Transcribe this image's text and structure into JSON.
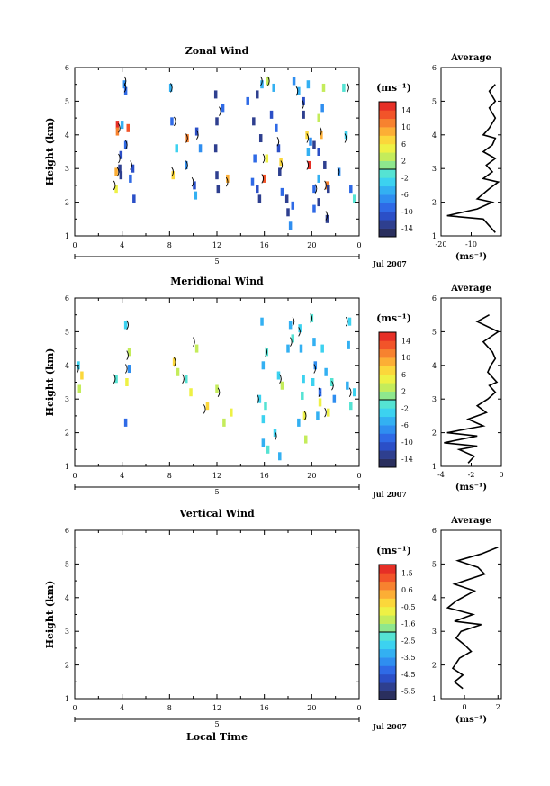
{
  "figure": {
    "x_axis_title": "Local Time",
    "date_label": "Jul 2007",
    "day_label": "5",
    "unit_label": "(ms⁻¹)"
  },
  "chart_data": [
    {
      "id": "zonal",
      "type": "heatmap",
      "title": "Zonal Wind",
      "ylabel": "Height (km)",
      "xticks": [
        "0",
        "4",
        "8",
        "12",
        "16",
        "20",
        "0"
      ],
      "yticks": [
        "1",
        "2",
        "3",
        "4",
        "5",
        "6"
      ],
      "colorbar": {
        "ticks": [
          "14",
          "10",
          "6",
          "2",
          "-2",
          "-6",
          "-10",
          "-14"
        ],
        "range": [
          -16,
          16
        ]
      },
      "cells": [
        [
          4.2,
          5.5,
          -8
        ],
        [
          4.3,
          5.3,
          -10
        ],
        [
          3.6,
          4.3,
          14
        ],
        [
          3.6,
          4.1,
          10
        ],
        [
          4.0,
          4.3,
          -6
        ],
        [
          4.5,
          4.2,
          12
        ],
        [
          3.9,
          3.4,
          -12
        ],
        [
          3.8,
          3.0,
          -14
        ],
        [
          3.9,
          2.8,
          -14
        ],
        [
          3.5,
          2.9,
          8
        ],
        [
          3.5,
          2.4,
          4
        ],
        [
          4.9,
          3.0,
          -12
        ],
        [
          4.7,
          2.7,
          -10
        ],
        [
          5.0,
          2.1,
          -12
        ],
        [
          4.3,
          3.7,
          -10
        ],
        [
          8.1,
          5.4,
          -6
        ],
        [
          8.2,
          4.4,
          -10
        ],
        [
          8.6,
          3.6,
          -4
        ],
        [
          8.3,
          2.8,
          6
        ],
        [
          9.5,
          3.9,
          10
        ],
        [
          9.4,
          3.1,
          -8
        ],
        [
          10.3,
          4.1,
          -12
        ],
        [
          10.6,
          3.6,
          -8
        ],
        [
          10.1,
          2.5,
          -12
        ],
        [
          10.2,
          2.2,
          -6
        ],
        [
          11.9,
          5.2,
          -14
        ],
        [
          12.0,
          4.4,
          -14
        ],
        [
          11.9,
          3.6,
          -14
        ],
        [
          12.0,
          2.8,
          -14
        ],
        [
          12.1,
          2.4,
          -14
        ],
        [
          12.5,
          4.8,
          -10
        ],
        [
          12.9,
          2.7,
          8
        ],
        [
          14.6,
          5.0,
          -10
        ],
        [
          15.4,
          5.2,
          -14
        ],
        [
          15.1,
          4.4,
          -14
        ],
        [
          15.7,
          3.9,
          -14
        ],
        [
          15.2,
          3.3,
          -10
        ],
        [
          15.0,
          2.6,
          -10
        ],
        [
          15.4,
          2.4,
          -12
        ],
        [
          15.6,
          2.1,
          -14
        ],
        [
          16.2,
          3.3,
          4
        ],
        [
          16.0,
          2.7,
          12
        ],
        [
          15.8,
          5.5,
          -6
        ],
        [
          16.3,
          5.6,
          2
        ],
        [
          16.8,
          5.4,
          -6
        ],
        [
          16.6,
          4.6,
          -12
        ],
        [
          17.0,
          4.2,
          -10
        ],
        [
          17.2,
          3.6,
          -12
        ],
        [
          17.4,
          3.2,
          6
        ],
        [
          17.3,
          2.9,
          -14
        ],
        [
          17.5,
          2.3,
          -10
        ],
        [
          17.9,
          2.1,
          -14
        ],
        [
          18.4,
          1.9,
          -10
        ],
        [
          18.2,
          1.3,
          -8
        ],
        [
          18.0,
          1.7,
          -14
        ],
        [
          18.9,
          5.3,
          -6
        ],
        [
          18.5,
          5.6,
          -8
        ],
        [
          19.3,
          5.0,
          -12
        ],
        [
          19.3,
          4.6,
          -14
        ],
        [
          19.7,
          5.5,
          -6
        ],
        [
          19.6,
          4.0,
          6
        ],
        [
          19.9,
          3.8,
          -8
        ],
        [
          19.7,
          3.5,
          -6
        ],
        [
          19.8,
          3.1,
          14
        ],
        [
          20.2,
          3.7,
          -14
        ],
        [
          20.2,
          2.4,
          -10
        ],
        [
          20.6,
          2.0,
          -14
        ],
        [
          20.2,
          1.8,
          -10
        ],
        [
          21.0,
          5.4,
          2
        ],
        [
          20.9,
          4.8,
          -8
        ],
        [
          20.6,
          4.5,
          2
        ],
        [
          20.8,
          4.0,
          8
        ],
        [
          20.6,
          3.5,
          -12
        ],
        [
          21.1,
          3.1,
          -14
        ],
        [
          20.6,
          2.7,
          -6
        ],
        [
          21.3,
          2.5,
          10
        ],
        [
          21.4,
          2.4,
          -14
        ],
        [
          21.3,
          1.5,
          -14
        ],
        [
          22.9,
          4.0,
          -4
        ],
        [
          22.3,
          2.9,
          -8
        ],
        [
          23.6,
          2.1,
          -2
        ],
        [
          22.7,
          5.4,
          -2
        ],
        [
          23.3,
          2.4,
          -10
        ]
      ],
      "contours": [
        [
          4.3,
          5.6
        ],
        [
          4.3,
          5.4
        ],
        [
          3.8,
          4.2
        ],
        [
          3.8,
          3.3
        ],
        [
          3.7,
          2.9
        ],
        [
          4.8,
          3.1
        ],
        [
          4.4,
          3.7
        ],
        [
          3.4,
          2.5
        ],
        [
          8.2,
          5.4
        ],
        [
          8.5,
          4.4
        ],
        [
          8.3,
          2.9
        ],
        [
          9.5,
          3.9
        ],
        [
          9.5,
          3.1
        ],
        [
          10.4,
          4.0
        ],
        [
          10.0,
          2.6
        ],
        [
          12.3,
          4.7
        ],
        [
          12.9,
          2.6
        ],
        [
          15.8,
          5.6
        ],
        [
          16.0,
          3.3
        ],
        [
          15.9,
          2.7
        ],
        [
          16.4,
          5.6
        ],
        [
          17.5,
          3.1
        ],
        [
          17.2,
          3.8
        ],
        [
          18.8,
          5.3
        ],
        [
          19.3,
          4.9
        ],
        [
          19.7,
          3.9
        ],
        [
          19.7,
          3.1
        ],
        [
          20.4,
          2.4
        ],
        [
          20.8,
          4.1
        ],
        [
          21.2,
          2.5
        ],
        [
          21.3,
          1.6
        ],
        [
          23.1,
          5.4
        ],
        [
          22.9,
          3.9
        ],
        [
          22.3,
          2.9
        ]
      ],
      "profile": {
        "title": "Average",
        "xticks": [
          "-20",
          "-10"
        ],
        "xlim": [
          -20,
          0
        ],
        "points": [
          [
            -2,
            5.5
          ],
          [
            -4,
            5.3
          ],
          [
            -2,
            5.0
          ],
          [
            -4,
            4.8
          ],
          [
            -2,
            4.5
          ],
          [
            -4,
            4.2
          ],
          [
            -6,
            4.0
          ],
          [
            -2,
            3.9
          ],
          [
            -3,
            3.7
          ],
          [
            -6,
            3.5
          ],
          [
            -2,
            3.3
          ],
          [
            -5,
            3.1
          ],
          [
            -3,
            2.9
          ],
          [
            -6,
            2.7
          ],
          [
            -1,
            2.6
          ],
          [
            -4,
            2.4
          ],
          [
            -8,
            2.1
          ],
          [
            -3,
            2.0
          ],
          [
            -8,
            1.8
          ],
          [
            -18,
            1.6
          ],
          [
            -6,
            1.5
          ],
          [
            -4,
            1.3
          ],
          [
            -2,
            1.1
          ]
        ]
      }
    },
    {
      "id": "meridional",
      "type": "heatmap",
      "title": "Meridional Wind",
      "ylabel": "Height (km)",
      "xticks": [
        "0",
        "4",
        "8",
        "12",
        "16",
        "20",
        "0"
      ],
      "yticks": [
        "1",
        "2",
        "3",
        "4",
        "5",
        "6"
      ],
      "colorbar": {
        "ticks": [
          "14",
          "10",
          "6",
          "2",
          "-2",
          "-6",
          "-10",
          "-14"
        ],
        "range": [
          -16,
          16
        ]
      },
      "cells": [
        [
          0.3,
          4.0,
          -4
        ],
        [
          0.6,
          3.7,
          6
        ],
        [
          0.4,
          3.3,
          2
        ],
        [
          3.5,
          3.6,
          -2
        ],
        [
          4.3,
          5.2,
          -4
        ],
        [
          4.6,
          4.4,
          2
        ],
        [
          4.6,
          3.9,
          -8
        ],
        [
          4.4,
          3.5,
          4
        ],
        [
          4.3,
          2.3,
          -10
        ],
        [
          8.4,
          4.1,
          6
        ],
        [
          8.7,
          3.8,
          2
        ],
        [
          9.8,
          3.2,
          4
        ],
        [
          9.4,
          3.6,
          -2
        ],
        [
          10.3,
          4.5,
          2
        ],
        [
          11.2,
          2.8,
          6
        ],
        [
          12.0,
          3.3,
          2
        ],
        [
          12.6,
          2.3,
          2
        ],
        [
          13.2,
          2.6,
          4
        ],
        [
          15.8,
          5.3,
          -6
        ],
        [
          16.2,
          4.4,
          -2
        ],
        [
          15.9,
          4.0,
          -6
        ],
        [
          15.6,
          3.0,
          -4
        ],
        [
          16.1,
          2.8,
          -2
        ],
        [
          15.9,
          2.4,
          -4
        ],
        [
          15.9,
          1.7,
          -6
        ],
        [
          16.3,
          1.5,
          -2
        ],
        [
          16.9,
          2.0,
          -4
        ],
        [
          17.3,
          1.3,
          -6
        ],
        [
          17.2,
          3.7,
          -4
        ],
        [
          17.5,
          3.4,
          2
        ],
        [
          18.2,
          5.2,
          -6
        ],
        [
          18.4,
          4.8,
          -2
        ],
        [
          18.0,
          4.5,
          -6
        ],
        [
          19.0,
          5.1,
          -4
        ],
        [
          19.1,
          4.5,
          -6
        ],
        [
          19.3,
          3.6,
          -4
        ],
        [
          19.2,
          3.1,
          -2
        ],
        [
          18.9,
          2.3,
          -6
        ],
        [
          19.4,
          2.5,
          4
        ],
        [
          19.5,
          1.8,
          2
        ],
        [
          20.0,
          5.4,
          -2
        ],
        [
          20.2,
          4.7,
          -6
        ],
        [
          20.3,
          4.0,
          -8
        ],
        [
          20.1,
          3.5,
          -4
        ],
        [
          20.7,
          3.2,
          -10
        ],
        [
          20.7,
          2.9,
          4
        ],
        [
          20.5,
          2.5,
          -6
        ],
        [
          20.9,
          4.5,
          -4
        ],
        [
          21.2,
          3.8,
          -6
        ],
        [
          21.7,
          3.5,
          -2
        ],
        [
          21.9,
          3.0,
          -8
        ],
        [
          21.4,
          2.6,
          4
        ],
        [
          23.2,
          5.3,
          -4
        ],
        [
          23.1,
          4.6,
          -6
        ],
        [
          23.3,
          2.8,
          -2
        ],
        [
          23.0,
          3.4,
          -6
        ],
        [
          23.6,
          3.2,
          -4
        ]
      ],
      "contours": [
        [
          0.3,
          3.9
        ],
        [
          3.4,
          3.6
        ],
        [
          4.5,
          5.2
        ],
        [
          4.5,
          4.3
        ],
        [
          4.4,
          3.9
        ],
        [
          8.5,
          4.1
        ],
        [
          9.2,
          3.6
        ],
        [
          10.1,
          4.7
        ],
        [
          11.0,
          2.7
        ],
        [
          12.2,
          3.2
        ],
        [
          15.5,
          3.0
        ],
        [
          16.2,
          4.4
        ],
        [
          17.0,
          1.9
        ],
        [
          17.4,
          3.6
        ],
        [
          18.5,
          5.3
        ],
        [
          18.3,
          4.7
        ],
        [
          19.0,
          5.0
        ],
        [
          19.5,
          2.5
        ],
        [
          20.0,
          5.4
        ],
        [
          20.3,
          3.9
        ],
        [
          20.7,
          3.2
        ],
        [
          21.2,
          2.6
        ],
        [
          21.8,
          3.4
        ],
        [
          23.0,
          5.3
        ],
        [
          23.3,
          3.2
        ]
      ],
      "profile": {
        "title": "Average",
        "xticks": [
          "-4",
          "-2",
          "0"
        ],
        "xlim": [
          -4,
          0
        ],
        "points": [
          [
            -0.8,
            5.5
          ],
          [
            -1.6,
            5.3
          ],
          [
            -0.2,
            5.0
          ],
          [
            -1.2,
            4.7
          ],
          [
            -0.6,
            4.4
          ],
          [
            -0.4,
            4.2
          ],
          [
            -0.7,
            4.0
          ],
          [
            -0.9,
            3.8
          ],
          [
            -0.3,
            3.5
          ],
          [
            -0.8,
            3.4
          ],
          [
            -0.4,
            3.2
          ],
          [
            -0.9,
            3.0
          ],
          [
            -1.6,
            2.8
          ],
          [
            -1.0,
            2.6
          ],
          [
            -2.2,
            2.4
          ],
          [
            -1.2,
            2.2
          ],
          [
            -3.6,
            2.0
          ],
          [
            -1.6,
            1.9
          ],
          [
            -3.8,
            1.7
          ],
          [
            -1.6,
            1.6
          ],
          [
            -2.8,
            1.5
          ],
          [
            -1.8,
            1.3
          ],
          [
            -2.2,
            1.1
          ]
        ]
      }
    },
    {
      "id": "vertical",
      "type": "heatmap",
      "title": "Vertical Wind",
      "ylabel": "Height (km)",
      "xticks": [
        "0",
        "4",
        "8",
        "12",
        "16",
        "20",
        "0"
      ],
      "yticks": [
        "1",
        "2",
        "3",
        "4",
        "5",
        "6"
      ],
      "colorbar": {
        "ticks": [
          "1.5",
          "0.6",
          "-0.5",
          "-1.6",
          "-2.5",
          "-3.5",
          "-4.5",
          "-5.5"
        ],
        "range": [
          -6,
          2
        ]
      },
      "cells": [],
      "contours": [],
      "profile": {
        "title": "Average",
        "xticks": [
          "0",
          "2"
        ],
        "xlim": [
          -1.4,
          2.2
        ],
        "points": [
          [
            2.0,
            5.5
          ],
          [
            1.0,
            5.3
          ],
          [
            -0.4,
            5.1
          ],
          [
            0.8,
            4.9
          ],
          [
            1.2,
            4.7
          ],
          [
            -0.6,
            4.4
          ],
          [
            0.6,
            4.2
          ],
          [
            -0.5,
            3.9
          ],
          [
            -1.0,
            3.7
          ],
          [
            0.5,
            3.5
          ],
          [
            -0.6,
            3.3
          ],
          [
            1.0,
            3.2
          ],
          [
            -0.2,
            3.0
          ],
          [
            -0.5,
            2.8
          ],
          [
            0.0,
            2.6
          ],
          [
            0.4,
            2.4
          ],
          [
            -0.3,
            2.2
          ],
          [
            -0.7,
            1.9
          ],
          [
            -0.1,
            1.7
          ],
          [
            -0.6,
            1.5
          ],
          [
            -0.1,
            1.3
          ]
        ]
      }
    }
  ]
}
